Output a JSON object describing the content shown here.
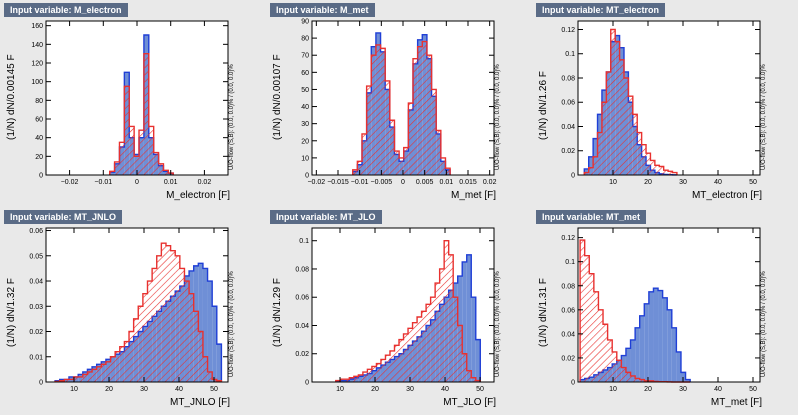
{
  "panels": [
    {
      "title": "Input variable: M_electron",
      "ylabel": "(1/N) dN/0.00145 F",
      "uoflow": "U/O-flow (S,B): (0.0, 0.0)% / (0.0, 0.0)%",
      "xlabel": "M_electron  [F]"
    },
    {
      "title": "Input variable: M_met",
      "ylabel": "(1/N) dN/0.00107 F",
      "uoflow": "U/O-flow (S,B): (0.0, 0.0)% / (0.0, 0.0)%",
      "xlabel": "M_met  [F]"
    },
    {
      "title": "Input variable: MT_electron",
      "ylabel": "(1/N) dN/1.26 F",
      "uoflow": "U/O-flow (S,B): (0.0, 0.0)% / (0.0, 0.0)%",
      "xlabel": "MT_electron  [F]"
    },
    {
      "title": "Input variable: MT_JNLO",
      "ylabel": "(1/N) dN/1.32 F",
      "uoflow": "U/O-flow (S,B): (0.0, 0.0)% / (0.0, 0.0)%",
      "xlabel": "MT_JNLO  [F]"
    },
    {
      "title": "Input variable: MT_JLO",
      "ylabel": "(1/N) dN/1.29 F",
      "uoflow": "U/O-flow (S,B): (0.0, 0.0)% / (0.0, 0.0)%",
      "xlabel": "MT_JLO  [F]"
    },
    {
      "title": "Input variable: MT_met",
      "ylabel": "(1/N) dN/1.31 F",
      "uoflow": "U/O-flow (S,B): (0.0, 0.0)% / (0.0, 0.0)%",
      "xlabel": "MT_met  [F]"
    }
  ],
  "colors": {
    "signal_fill": "#6f8fd6",
    "signal_line": "#1f3fd6",
    "background_hatch": "#e8312f",
    "page_bg": "#e9e9e9",
    "frame_bg": "#ffffff",
    "title_bg": "#5a6b86"
  },
  "chart_data": [
    {
      "type": "histogram",
      "title": "Input variable: M_electron",
      "xlabel": "M_electron  [F]",
      "ylabel": "(1/N) dN/0.00145 F",
      "xlim": [
        -0.027,
        0.027
      ],
      "ylim": [
        0,
        165
      ],
      "xticks": [
        -0.02,
        -0.01,
        0,
        0.01,
        0.02
      ],
      "xtick_labels": [
        "−0.02",
        "−0.01",
        "0",
        "0.01",
        "0.02"
      ],
      "yticks": [
        0,
        20,
        40,
        60,
        80,
        100,
        120,
        140,
        160
      ],
      "bin_edges": [
        -0.0081,
        -0.00665,
        -0.0052,
        -0.00375,
        -0.0023,
        -0.00085,
        0.0006,
        0.00205,
        0.0035,
        0.00495,
        0.0064,
        0.00785,
        0.0093,
        0.01075
      ],
      "series": [
        {
          "role": "signal",
          "values": [
            3,
            12,
            30,
            110,
            40,
            22,
            40,
            150,
            40,
            22,
            10,
            4,
            2
          ]
        },
        {
          "role": "background",
          "values": [
            4,
            14,
            35,
            95,
            52,
            20,
            48,
            130,
            52,
            24,
            12,
            5,
            2
          ]
        }
      ]
    },
    {
      "type": "histogram",
      "title": "Input variable: M_met",
      "xlabel": "M_met  [F]",
      "ylabel": "(1/N) dN/0.00107 F",
      "xlim": [
        -0.021,
        0.021
      ],
      "ylim": [
        0,
        90
      ],
      "xticks": [
        -0.02,
        -0.015,
        -0.01,
        -0.005,
        0,
        0.005,
        0.01,
        0.015,
        0.02
      ],
      "xtick_labels": [
        "−0.02",
        "−0.015",
        "−0.01",
        "−0.005",
        "0",
        "0.005",
        "0.01",
        "0.015",
        "0.02"
      ],
      "yticks": [
        0,
        10,
        20,
        30,
        40,
        50,
        60,
        70,
        80,
        90
      ],
      "bin_edges": [
        -0.0116,
        -0.01053,
        -0.00946,
        -0.00839,
        -0.00732,
        -0.00625,
        -0.00518,
        -0.00411,
        -0.00304,
        -0.00197,
        -0.0009,
        0.00017,
        0.00124,
        0.00231,
        0.00338,
        0.00445,
        0.00552,
        0.00659,
        0.00766,
        0.00873,
        0.0098,
        0.01087
      ],
      "series": [
        {
          "role": "signal",
          "values": [
            2,
            6,
            20,
            48,
            75,
            83,
            72,
            50,
            28,
            12,
            8,
            14,
            38,
            65,
            79,
            82,
            68,
            46,
            24,
            8,
            3
          ]
        },
        {
          "role": "background",
          "values": [
            3,
            8,
            24,
            52,
            70,
            76,
            74,
            55,
            32,
            14,
            10,
            16,
            42,
            68,
            75,
            78,
            70,
            50,
            26,
            10,
            4
          ]
        }
      ]
    },
    {
      "type": "histogram",
      "title": "Input variable: MT_electron",
      "xlabel": "MT_electron  [F]",
      "ylabel": "(1/N) dN/1.26 F",
      "xlim": [
        0,
        52
      ],
      "ylim": [
        0,
        0.127
      ],
      "xticks": [
        10,
        20,
        30,
        40,
        50
      ],
      "xtick_labels": [
        "10",
        "20",
        "30",
        "40",
        "50"
      ],
      "yticks": [
        0,
        0.02,
        0.04,
        0.06,
        0.08,
        0.1,
        0.12
      ],
      "yticks_labels": [
        "0",
        "0.02",
        "0.04",
        "0.06",
        "0.08",
        "0.1",
        "0.12"
      ],
      "bin_edges": [
        1.8,
        3.06,
        4.32,
        5.58,
        6.84,
        8.1,
        9.36,
        10.62,
        11.88,
        13.14,
        14.4,
        15.66,
        16.92,
        18.18,
        19.44,
        20.7,
        21.96,
        23.22,
        24.48,
        25.74,
        27,
        28.26
      ],
      "series": [
        {
          "role": "signal",
          "values": [
            0.005,
            0.015,
            0.03,
            0.05,
            0.07,
            0.085,
            0.11,
            0.115,
            0.105,
            0.085,
            0.06,
            0.04,
            0.025,
            0.015,
            0.008,
            0.004,
            0.002,
            0.001,
            0.0005,
            0.0002,
            0.0001
          ]
        },
        {
          "role": "background",
          "values": [
            0.002,
            0.006,
            0.015,
            0.035,
            0.06,
            0.085,
            0.12,
            0.11,
            0.095,
            0.08,
            0.065,
            0.05,
            0.035,
            0.025,
            0.018,
            0.012,
            0.008,
            0.007,
            0.004,
            0.003,
            0.002
          ]
        }
      ]
    },
    {
      "type": "histogram",
      "title": "Input variable: MT_JNLO",
      "xlabel": "MT_JNLO  [F]",
      "ylabel": "(1/N) dN/1.32 F",
      "xlim": [
        2,
        54
      ],
      "ylim": [
        0,
        0.061
      ],
      "xticks": [
        10,
        20,
        30,
        40,
        50
      ],
      "xtick_labels": [
        "10",
        "20",
        "30",
        "40",
        "50"
      ],
      "yticks": [
        0,
        0.01,
        0.02,
        0.03,
        0.04,
        0.05,
        0.06
      ],
      "yticks_labels": [
        "0",
        "0.01",
        "0.02",
        "0.03",
        "0.04",
        "0.05",
        "0.06"
      ],
      "bin_edges": [
        4.6,
        5.92,
        7.24,
        8.56,
        9.88,
        11.2,
        12.52,
        13.84,
        15.16,
        16.48,
        17.8,
        19.12,
        20.44,
        21.76,
        23.08,
        24.4,
        25.72,
        27.04,
        28.36,
        29.68,
        31,
        32.32,
        33.64,
        34.96,
        36.28,
        37.6,
        38.92,
        40.24,
        41.56,
        42.88,
        44.2,
        45.52,
        46.84,
        48.16,
        49.48,
        50.8,
        52.12
      ],
      "series": [
        {
          "role": "signal",
          "values": [
            0.0005,
            0.001,
            0.001,
            0.002,
            0.002,
            0.003,
            0.004,
            0.005,
            0.006,
            0.007,
            0.008,
            0.009,
            0.01,
            0.011,
            0.012,
            0.014,
            0.016,
            0.018,
            0.02,
            0.022,
            0.024,
            0.026,
            0.028,
            0.03,
            0.032,
            0.034,
            0.036,
            0.038,
            0.042,
            0.044,
            0.046,
            0.047,
            0.045,
            0.04,
            0.03,
            0.015
          ]
        },
        {
          "role": "background",
          "values": [
            0.0002,
            0.0005,
            0.001,
            0.001,
            0.002,
            0.002,
            0.003,
            0.004,
            0.005,
            0.006,
            0.007,
            0.008,
            0.01,
            0.012,
            0.014,
            0.016,
            0.02,
            0.025,
            0.03,
            0.035,
            0.04,
            0.045,
            0.05,
            0.055,
            0.054,
            0.052,
            0.05,
            0.045,
            0.04,
            0.035,
            0.028,
            0.02,
            0.01,
            0.004,
            0.001,
            0.0005
          ]
        }
      ]
    },
    {
      "type": "histogram",
      "title": "Input variable: MT_JLO",
      "xlabel": "MT_JLO  [F]",
      "ylabel": "(1/N) dN/1.29 F",
      "xlim": [
        2,
        54
      ],
      "ylim": [
        0,
        0.109
      ],
      "xticks": [
        10,
        20,
        30,
        40,
        50
      ],
      "xtick_labels": [
        "10",
        "20",
        "30",
        "40",
        "50"
      ],
      "yticks": [
        0,
        0.02,
        0.04,
        0.06,
        0.08,
        0.1
      ],
      "yticks_labels": [
        "0",
        "0.02",
        "0.04",
        "0.06",
        "0.08",
        "0.1"
      ],
      "bin_edges": [
        8.8,
        10.09,
        11.38,
        12.67,
        13.96,
        15.25,
        16.54,
        17.83,
        19.12,
        20.41,
        21.7,
        22.99,
        24.28,
        25.57,
        26.86,
        28.15,
        29.44,
        30.73,
        32.02,
        33.31,
        34.6,
        35.89,
        37.18,
        38.47,
        39.76,
        41.05,
        42.34,
        43.63,
        44.92,
        46.21,
        47.5,
        48.79,
        50.08
      ],
      "series": [
        {
          "role": "signal",
          "values": [
            0.0005,
            0.001,
            0.001,
            0.002,
            0.003,
            0.004,
            0.005,
            0.006,
            0.008,
            0.01,
            0.012,
            0.014,
            0.016,
            0.018,
            0.02,
            0.023,
            0.026,
            0.029,
            0.032,
            0.036,
            0.04,
            0.044,
            0.05,
            0.055,
            0.06,
            0.065,
            0.07,
            0.075,
            0.085,
            0.09,
            0.06,
            0.03
          ]
        },
        {
          "role": "background",
          "values": [
            0.001,
            0.002,
            0.002,
            0.003,
            0.004,
            0.005,
            0.007,
            0.009,
            0.011,
            0.013,
            0.016,
            0.019,
            0.022,
            0.026,
            0.03,
            0.034,
            0.038,
            0.042,
            0.046,
            0.05,
            0.055,
            0.06,
            0.07,
            0.08,
            0.1,
            0.09,
            0.06,
            0.04,
            0.02,
            0.008,
            0.003,
            0.001
          ]
        }
      ]
    },
    {
      "type": "histogram",
      "title": "Input variable: MT_met",
      "xlabel": "MT_met  [F]",
      "ylabel": "(1/N) dN/1.31 F",
      "xlim": [
        0,
        52
      ],
      "ylim": [
        0,
        0.128
      ],
      "xticks": [
        10,
        20,
        30,
        40,
        50
      ],
      "xtick_labels": [
        "10",
        "20",
        "30",
        "40",
        "50"
      ],
      "yticks": [
        0,
        0.02,
        0.04,
        0.06,
        0.08,
        0.1,
        0.12
      ],
      "yticks_labels": [
        "0",
        "0.02",
        "0.04",
        "0.06",
        "0.08",
        "0.1",
        "0.12"
      ],
      "bin_edges": [
        0.6,
        1.91,
        3.22,
        4.53,
        5.84,
        7.15,
        8.46,
        9.77,
        11.08,
        12.39,
        13.7,
        15.01,
        16.32,
        17.63,
        18.94,
        20.25,
        21.56,
        22.87,
        24.18,
        25.49,
        26.8,
        28.11,
        29.42,
        30.73,
        32.04
      ],
      "series": [
        {
          "role": "signal",
          "values": [
            0.002,
            0.003,
            0.004,
            0.006,
            0.008,
            0.01,
            0.012,
            0.015,
            0.018,
            0.022,
            0.028,
            0.035,
            0.045,
            0.055,
            0.065,
            0.075,
            0.078,
            0.076,
            0.07,
            0.06,
            0.045,
            0.025,
            0.008,
            0.002
          ]
        },
        {
          "role": "background",
          "values": [
            0.118,
            0.105,
            0.09,
            0.075,
            0.06,
            0.048,
            0.035,
            0.025,
            0.018,
            0.012,
            0.008,
            0.005,
            0.003,
            0.002,
            0.001,
            0.001,
            0.0005,
            0.0003,
            0.0002,
            0.0001,
            0,
            0,
            0,
            0
          ]
        }
      ]
    }
  ]
}
